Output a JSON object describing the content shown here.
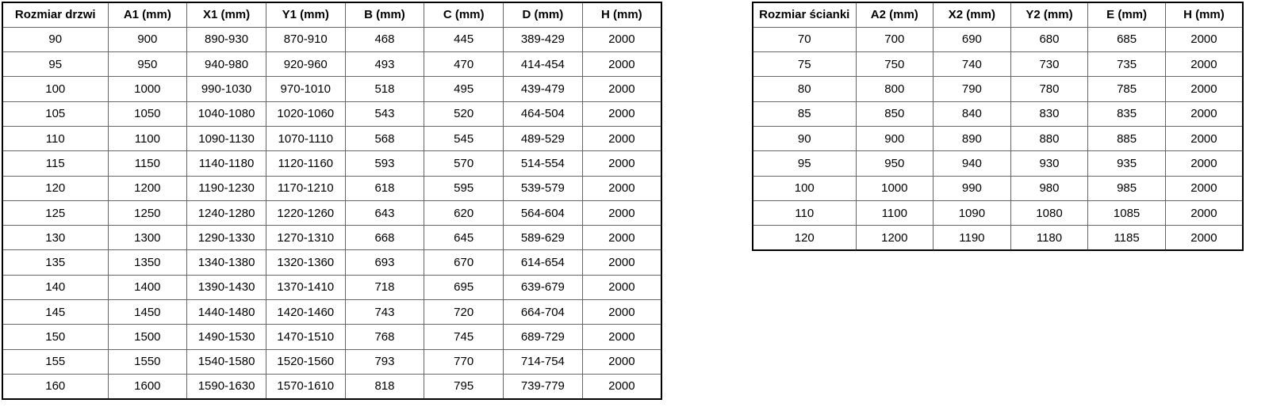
{
  "colors": {
    "background": "#ffffff",
    "text": "#000000",
    "outer_border": "#000000",
    "inner_border": "#666666"
  },
  "tables": [
    {
      "name": "door-dimensions",
      "headers": [
        "Rozmiar drzwi",
        "A1 (mm)",
        "X1 (mm)",
        "Y1 (mm)",
        "B (mm)",
        "C (mm)",
        "D (mm)",
        "H (mm)"
      ],
      "rows": [
        [
          "90",
          "900",
          "890-930",
          "870-910",
          "468",
          "445",
          "389-429",
          "2000"
        ],
        [
          "95",
          "950",
          "940-980",
          "920-960",
          "493",
          "470",
          "414-454",
          "2000"
        ],
        [
          "100",
          "1000",
          "990-1030",
          "970-1010",
          "518",
          "495",
          "439-479",
          "2000"
        ],
        [
          "105",
          "1050",
          "1040-1080",
          "1020-1060",
          "543",
          "520",
          "464-504",
          "2000"
        ],
        [
          "110",
          "1100",
          "1090-1130",
          "1070-1110",
          "568",
          "545",
          "489-529",
          "2000"
        ],
        [
          "115",
          "1150",
          "1140-1180",
          "1120-1160",
          "593",
          "570",
          "514-554",
          "2000"
        ],
        [
          "120",
          "1200",
          "1190-1230",
          "1170-1210",
          "618",
          "595",
          "539-579",
          "2000"
        ],
        [
          "125",
          "1250",
          "1240-1280",
          "1220-1260",
          "643",
          "620",
          "564-604",
          "2000"
        ],
        [
          "130",
          "1300",
          "1290-1330",
          "1270-1310",
          "668",
          "645",
          "589-629",
          "2000"
        ],
        [
          "135",
          "1350",
          "1340-1380",
          "1320-1360",
          "693",
          "670",
          "614-654",
          "2000"
        ],
        [
          "140",
          "1400",
          "1390-1430",
          "1370-1410",
          "718",
          "695",
          "639-679",
          "2000"
        ],
        [
          "145",
          "1450",
          "1440-1480",
          "1420-1460",
          "743",
          "720",
          "664-704",
          "2000"
        ],
        [
          "150",
          "1500",
          "1490-1530",
          "1470-1510",
          "768",
          "745",
          "689-729",
          "2000"
        ],
        [
          "155",
          "1550",
          "1540-1580",
          "1520-1560",
          "793",
          "770",
          "714-754",
          "2000"
        ],
        [
          "160",
          "1600",
          "1590-1630",
          "1570-1610",
          "818",
          "795",
          "739-779",
          "2000"
        ]
      ]
    },
    {
      "name": "wall-panel-dimensions",
      "headers": [
        "Rozmiar ścianki",
        "A2 (mm)",
        "X2 (mm)",
        "Y2 (mm)",
        "E (mm)",
        "H (mm)"
      ],
      "rows": [
        [
          "70",
          "700",
          "690",
          "680",
          "685",
          "2000"
        ],
        [
          "75",
          "750",
          "740",
          "730",
          "735",
          "2000"
        ],
        [
          "80",
          "800",
          "790",
          "780",
          "785",
          "2000"
        ],
        [
          "85",
          "850",
          "840",
          "830",
          "835",
          "2000"
        ],
        [
          "90",
          "900",
          "890",
          "880",
          "885",
          "2000"
        ],
        [
          "95",
          "950",
          "940",
          "930",
          "935",
          "2000"
        ],
        [
          "100",
          "1000",
          "990",
          "980",
          "985",
          "2000"
        ],
        [
          "110",
          "1100",
          "1090",
          "1080",
          "1085",
          "2000"
        ],
        [
          "120",
          "1200",
          "1190",
          "1180",
          "1185",
          "2000"
        ]
      ]
    }
  ]
}
